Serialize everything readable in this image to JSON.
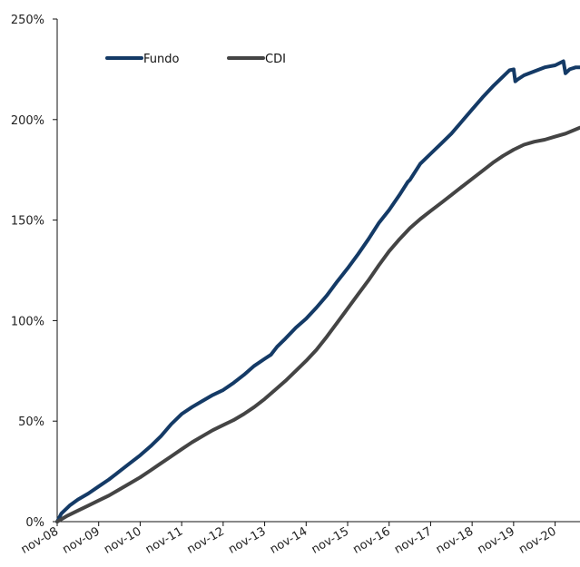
{
  "chart_data": {
    "type": "line",
    "title": "",
    "xlabel": "",
    "ylabel": "",
    "ylim": [
      0,
      250
    ],
    "y_ticks": [
      0,
      50,
      100,
      150,
      200,
      250
    ],
    "y_tick_labels": [
      "0%",
      "50%",
      "100%",
      "150%",
      "200%",
      "250%"
    ],
    "x_ticks": [
      0,
      1,
      2,
      3,
      4,
      5,
      6,
      7,
      8,
      9,
      10,
      11,
      12
    ],
    "x_tick_labels": [
      "nov-08",
      "nov-09",
      "nov-10",
      "nov-11",
      "nov-12",
      "nov-13",
      "nov-14",
      "nov-15",
      "nov-16",
      "nov-17",
      "nov-18",
      "nov-19",
      "nov-20"
    ],
    "xlim": [
      0,
      12.6
    ],
    "grid": false,
    "legend": "top-left",
    "series": [
      {
        "name": "Fundo",
        "color": "#143a66",
        "points": [
          [
            0,
            0
          ],
          [
            0.1,
            4
          ],
          [
            0.3,
            8
          ],
          [
            0.5,
            11
          ],
          [
            0.75,
            14
          ],
          [
            1,
            17.5
          ],
          [
            1.25,
            21
          ],
          [
            1.5,
            25
          ],
          [
            1.75,
            29
          ],
          [
            2,
            33
          ],
          [
            2.25,
            37.5
          ],
          [
            2.5,
            42.5
          ],
          [
            2.75,
            48.5
          ],
          [
            3,
            53.5
          ],
          [
            3.25,
            57
          ],
          [
            3.5,
            60
          ],
          [
            3.75,
            63
          ],
          [
            4,
            65.5
          ],
          [
            4.25,
            69
          ],
          [
            4.5,
            73
          ],
          [
            4.75,
            77.5
          ],
          [
            5,
            81
          ],
          [
            5.15,
            83
          ],
          [
            5.3,
            87
          ],
          [
            5.5,
            91
          ],
          [
            5.75,
            96.5
          ],
          [
            6,
            101
          ],
          [
            6.25,
            106.5
          ],
          [
            6.5,
            112.5
          ],
          [
            6.75,
            119.5
          ],
          [
            7,
            126
          ],
          [
            7.25,
            133
          ],
          [
            7.5,
            140.5
          ],
          [
            7.75,
            148.5
          ],
          [
            8,
            155
          ],
          [
            8.25,
            162.5
          ],
          [
            8.45,
            169
          ],
          [
            8.5,
            170
          ],
          [
            8.75,
            178
          ],
          [
            9,
            183
          ],
          [
            9.25,
            188
          ],
          [
            9.5,
            193
          ],
          [
            9.75,
            199
          ],
          [
            10,
            205
          ],
          [
            10.25,
            211
          ],
          [
            10.5,
            216.5
          ],
          [
            10.75,
            221.5
          ],
          [
            10.9,
            224.5
          ],
          [
            11,
            225
          ],
          [
            11.04,
            219
          ],
          [
            11.1,
            220
          ],
          [
            11.25,
            222
          ],
          [
            11.5,
            224
          ],
          [
            11.75,
            226
          ],
          [
            12,
            227
          ],
          [
            12.2,
            229
          ],
          [
            12.25,
            223
          ],
          [
            12.35,
            225
          ],
          [
            12.5,
            226
          ],
          [
            12.6,
            226
          ]
        ]
      },
      {
        "name": "CDI",
        "color": "#444444",
        "points": [
          [
            0,
            0
          ],
          [
            0.25,
            3
          ],
          [
            0.5,
            5.5
          ],
          [
            0.75,
            8
          ],
          [
            1,
            10.5
          ],
          [
            1.25,
            13
          ],
          [
            1.5,
            16
          ],
          [
            1.75,
            19
          ],
          [
            2,
            22
          ],
          [
            2.25,
            25.5
          ],
          [
            2.5,
            29
          ],
          [
            2.75,
            32.5
          ],
          [
            3,
            36
          ],
          [
            3.25,
            39.5
          ],
          [
            3.5,
            42.5
          ],
          [
            3.75,
            45.5
          ],
          [
            4,
            48
          ],
          [
            4.25,
            50.5
          ],
          [
            4.5,
            53.5
          ],
          [
            4.75,
            57
          ],
          [
            5,
            61
          ],
          [
            5.25,
            65.5
          ],
          [
            5.5,
            70
          ],
          [
            5.75,
            75
          ],
          [
            6,
            80
          ],
          [
            6.25,
            85.5
          ],
          [
            6.5,
            92
          ],
          [
            6.75,
            99
          ],
          [
            7,
            106
          ],
          [
            7.25,
            113
          ],
          [
            7.5,
            120
          ],
          [
            7.75,
            127.5
          ],
          [
            8,
            134.5
          ],
          [
            8.25,
            140.5
          ],
          [
            8.5,
            146
          ],
          [
            8.75,
            150.5
          ],
          [
            9,
            154.5
          ],
          [
            9.25,
            158.5
          ],
          [
            9.5,
            162.5
          ],
          [
            9.75,
            166.5
          ],
          [
            10,
            170.5
          ],
          [
            10.25,
            174.5
          ],
          [
            10.5,
            178.5
          ],
          [
            10.75,
            182
          ],
          [
            11,
            185
          ],
          [
            11.25,
            187.5
          ],
          [
            11.5,
            189
          ],
          [
            11.75,
            190
          ],
          [
            12,
            191.5
          ],
          [
            12.25,
            193
          ],
          [
            12.6,
            196
          ]
        ]
      }
    ]
  }
}
